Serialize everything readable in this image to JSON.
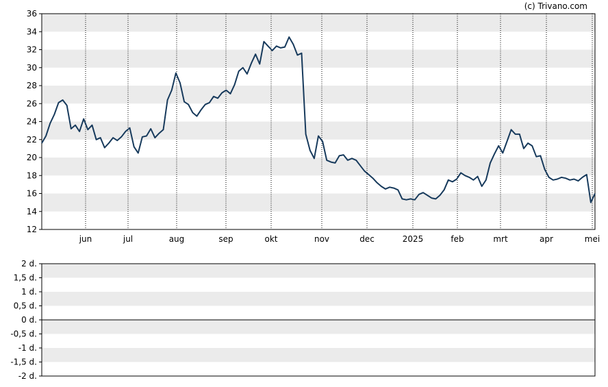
{
  "credit": "(c) Trivano.com",
  "chart_data": [
    {
      "type": "line",
      "ylim": [
        12,
        36
      ],
      "y_ticks": [
        "12",
        "14",
        "16",
        "18",
        "20",
        "22",
        "24",
        "26",
        "28",
        "30",
        "32",
        "34",
        "36"
      ],
      "x_ticks": [
        "jun",
        "jul",
        "aug",
        "sep",
        "okt",
        "nov",
        "dec",
        "2025",
        "feb",
        "mrt",
        "apr",
        "mei"
      ],
      "grid": "horizontal alternating bands, dotted vertical month lines",
      "colors": {
        "line": "#173a5c",
        "band": "#ebebeb",
        "grid": "#000000"
      },
      "series": [
        {
          "values": [
            21.6,
            22.4,
            23.8,
            24.8,
            26.1,
            26.4,
            25.8,
            23.2,
            23.6,
            22.9,
            24.3,
            23.1,
            23.6,
            22.0,
            22.2,
            21.1,
            21.6,
            22.2,
            21.9,
            22.3,
            22.9,
            23.3,
            21.2,
            20.5,
            22.3,
            22.4,
            23.2,
            22.2,
            22.7,
            23.1,
            26.4,
            27.5,
            29.4,
            28.3,
            26.2,
            25.9,
            25.0,
            24.6,
            25.3,
            25.9,
            26.1,
            26.8,
            26.6,
            27.2,
            27.5,
            27.1,
            28.1,
            29.6,
            30.0,
            29.3,
            30.5,
            31.5,
            30.4,
            32.9,
            32.4,
            31.9,
            32.4,
            32.2,
            32.3,
            33.4,
            32.6,
            31.4,
            31.6,
            22.6,
            20.8,
            19.9,
            22.4,
            21.8,
            19.7,
            19.5,
            19.4,
            20.2,
            20.3,
            19.7,
            19.9,
            19.7,
            19.1,
            18.5,
            18.1,
            17.7,
            17.2,
            16.8,
            16.5,
            16.7,
            16.6,
            16.4,
            15.4,
            15.3,
            15.4,
            15.3,
            15.9,
            16.1,
            15.8,
            15.5,
            15.4,
            15.8,
            16.4,
            17.5,
            17.3,
            17.6,
            18.3,
            18.0,
            17.8,
            17.5,
            17.9,
            16.8,
            17.5,
            19.4,
            20.4,
            21.3,
            20.5,
            21.8,
            23.1,
            22.6,
            22.6,
            21.0,
            21.6,
            21.3,
            20.1,
            20.2,
            18.7,
            17.8,
            17.5,
            17.6,
            17.8,
            17.7,
            17.5,
            17.6,
            17.4,
            17.8,
            18.1,
            15.0,
            16.0
          ]
        }
      ]
    },
    {
      "type": "line",
      "ylim": [
        -2,
        2
      ],
      "y_ticks": [
        "2 d.",
        "1,5 d.",
        "1 d.",
        "0,5 d.",
        "0 d.",
        "-0,5 d.",
        "-1 d.",
        "-1,5 d.",
        "-2 d."
      ],
      "series": []
    }
  ]
}
